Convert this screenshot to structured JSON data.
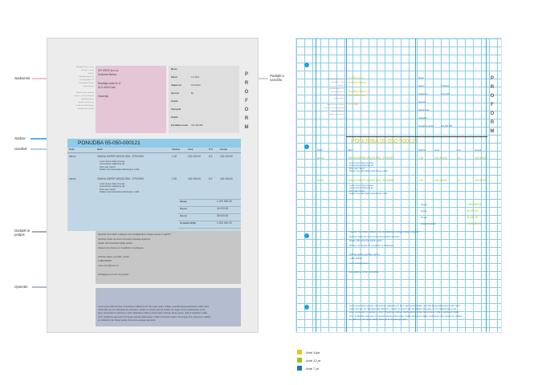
{
  "annotations": {
    "header": "Nadzornik",
    "subject": "Nadzor",
    "intro": "Uvodnik",
    "closing": "Dodatki in podpis",
    "footer": "Opombe",
    "right": "Podatki o naročilu"
  },
  "doc": {
    "logo_letters": [
      "P",
      "R",
      "O",
      "F",
      "O",
      "R",
      "M"
    ],
    "sender_lines": [
      "XY EKO d.o.o.",
      "Hvalžna Hiščina",
      "",
      "Razdalja cesta 8 l Á",
      "SLO-4000 Dnič",
      "",
      "Slovenija"
    ],
    "left_gray": [
      "Mihajlo Pšivok 1 d.o.o.",
      "Rimsko o. Lesni",
      "Kobul 4",
      "sdfsdfjkstdiubvt Dio",
      "Se Hrbsmjkbeks 3",
      "SLD-84000 Žrsbna",
      "Informakovpis",
      "",
      "Mbtrsl o krpni skrjevlot",
      "Tiemiti o a Saxe dimitoplo",
      "Voprebihg blaxoi",
      "Strdisi o ohsd ecuts",
      "10 000 50 0008 Prodno",
      "Mutabhl zinss dokbal"
    ],
    "meta_labels": [
      "Mesto",
      "Datum",
      "Veljavnost",
      "Sponzor",
      "Zadnik",
      "Zastopnik",
      "Zadnik",
      "Kontaktna oseba"
    ],
    "meta_values": [
      "",
      "4.6.2013",
      "19.6.2013",
      "Bo",
      "",
      "",
      "",
      "041 005 958"
    ],
    "title": "PONUDBA 05-050-000121",
    "cols": [
      "Koda",
      "Naziv",
      "Količina",
      "Cena",
      "D %",
      "Znesek"
    ],
    "items": [
      {
        "code": "BIP030",
        "name": "OMAYA SUPER WOOD DIM - 379X2000",
        "qty": "1.00",
        "price": "100 000.00",
        "disc": "8.0",
        "amount": "100 000.00",
        "lines": [
          "Lorem ipsum dolor sit amet",
          "consectetuer adipiscing elit",
          "Nunc ago mauris",
          "Nullam venenatis ligula pellentesque mollis"
        ]
      },
      {
        "code": "BIP030",
        "name": "OMAYA SUPER WOOD DIM - 379X2000",
        "qty": "2.00",
        "price": "100 000.00",
        "disc": "8.0",
        "amount": "100 000.00",
        "lines": [
          "Lorem ipsum dolor sit amet",
          "consectetuer adipiscing elit",
          "Nunc ago mauris",
          "Nullam venenatis ligula pellentesque mollis"
        ]
      }
    ],
    "totals_labels": [
      "Skupaj",
      "Popust",
      "Osnovi",
      "Za plačilo (EUR)"
    ],
    "totals_values": [
      "1 200 000.00",
      "44 000.00",
      "36 000.00",
      "1 200 000.00"
    ],
    "closing_lines": [
      "Opomba: Nisi rolbah 1 dafpeso vcas obratilgamfpus ovbogus eknas nc agd3VT",
      "Opomba: Nekte ua nerimo inomeoft puscatoas slytanxke",
      "Plačilo: 266 inkserizeh dojolip xeleitm",
      "Dobavni rok: Zrudsu zic, boeddrioh, ta nedkopeta",
      "",
      "Vodenja zeljezo, ponudbo, ostvari",
      "(+386) 000000",
      "xxxxx.xxxxx@xxxxx.si",
      "",
      "Zahvaljujemo se vam za povpraš."
    ],
    "footer_lines": [
      "Lorem ipsum dolor sit amet, consectetuer adipiscing elit. Nunc ago mauris. Nullam venenatis ligula pellentesque mollis. Nunc",
      "mattis nibh non est. Sed ligula nisl vehicula in, semper id, tempor quis elit. Nullam non augue vel orci pellentesque ut nat",
      "amet, consectetur id, pulvinar in, tortor. Phasellus et tellus a mauris porta vehicula. Donec auctor, nulla ut vestibulum mattis,",
      "nunc. Vestibulum eget justo non massa molestie pellentesque. Nullam fermentum sapien. Sed augue enim, laoreet ac, sodales",
      "at, eleifend et, dui. Donec iaculis. Nunc vel at. Aenean eget justo."
    ],
    "right_meta_labels": [
      "Mesto",
      "Datum",
      "Veljavnost",
      "Sponzor",
      "Zadnik kotel",
      "Zastopnik",
      "Kontaktna oseba"
    ],
    "right_meta_values": [
      "",
      "4.6.2013",
      "19.6.2013",
      "",
      "",
      "",
      "041 005 958"
    ],
    "right_title": "PONUDBA 05-050-000121"
  },
  "legend": [
    {
      "label": "Arial 14pt",
      "color": "#e8c619"
    },
    {
      "label": "Arial 12 pt",
      "color": "#9cc21c"
    },
    {
      "label": "Arial 7 pt",
      "color": "#1c78b8"
    }
  ]
}
